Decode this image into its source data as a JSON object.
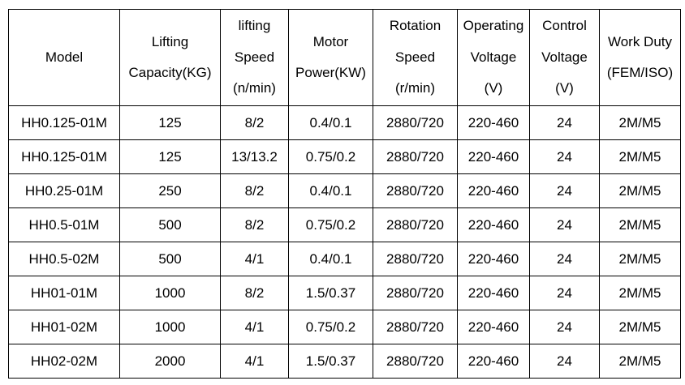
{
  "table": {
    "header": [
      [
        "Model"
      ],
      [
        "Lifting",
        "Capacity(KG)"
      ],
      [
        "lifting",
        "Speed",
        "(n/min)"
      ],
      [
        "Motor",
        "Power(KW)"
      ],
      [
        "Rotation",
        "Speed",
        "(r/min)"
      ],
      [
        "Operating",
        "Voltage",
        "(V)"
      ],
      [
        "Control",
        "Voltage",
        "(V)"
      ],
      [
        "Work Duty",
        "(FEM/ISO)"
      ]
    ],
    "rows": [
      [
        "HH0.125-01M",
        "125",
        "8/2",
        "0.4/0.1",
        "2880/720",
        "220-460",
        "24",
        "2M/M5"
      ],
      [
        "HH0.125-01M",
        "125",
        "13/13.2",
        "0.75/0.2",
        "2880/720",
        "220-460",
        "24",
        "2M/M5"
      ],
      [
        "HH0.25-01M",
        "250",
        "8/2",
        "0.4/0.1",
        "2880/720",
        "220-460",
        "24",
        "2M/M5"
      ],
      [
        "HH0.5-01M",
        "500",
        "8/2",
        "0.75/0.2",
        "2880/720",
        "220-460",
        "24",
        "2M/M5"
      ],
      [
        "HH0.5-02M",
        "500",
        "4/1",
        "0.4/0.1",
        "2880/720",
        "220-460",
        "24",
        "2M/M5"
      ],
      [
        "HH01-01M",
        "1000",
        "8/2",
        "1.5/0.37",
        "2880/720",
        "220-460",
        "24",
        "2M/M5"
      ],
      [
        "HH01-02M",
        "1000",
        "4/1",
        "0.75/0.2",
        "2880/720",
        "220-460",
        "24",
        "2M/M5"
      ],
      [
        "HH02-02M",
        "2000",
        "4/1",
        "1.5/0.37",
        "2880/720",
        "220-460",
        "24",
        "2M/M5"
      ]
    ]
  }
}
